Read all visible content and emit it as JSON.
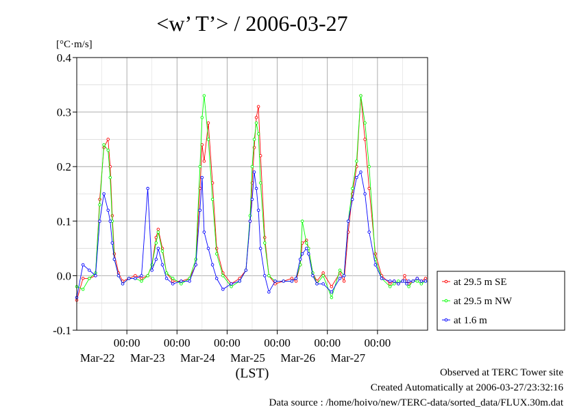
{
  "title": "<w’ T’> / 2006-03-27",
  "chart_data": {
    "type": "line",
    "title": "<w’ T’> / 2006-03-27",
    "ylabel": "[°C·m/s]",
    "xlabel": "(LST)",
    "ylim": [
      -0.1,
      0.4
    ],
    "xlim": [
      "2006-03-21 00:00",
      "2006-03-28 00:00"
    ],
    "y_ticks": [
      "-0.1",
      "0.0",
      "0.1",
      "0.2",
      "0.3",
      "0.4"
    ],
    "x_ticks": [
      {
        "time": "00:00",
        "date": "Mar-22"
      },
      {
        "time": "00:00",
        "date": "Mar-23"
      },
      {
        "time": "00:00",
        "date": "Mar-24"
      },
      {
        "time": "00:00",
        "date": "Mar-25"
      },
      {
        "time": "00:00",
        "date": "Mar-26"
      },
      {
        "time": "00:00",
        "date": "Mar-27"
      }
    ],
    "grid": true,
    "legend_position": "right",
    "series": [
      {
        "name": "at 29.5 m SE",
        "color": "#ff0000",
        "x": [
          "2006-03-21 00:00",
          "2006-03-21 03:00",
          "2006-03-21 06:00",
          "2006-03-21 09:00",
          "2006-03-21 11:00",
          "2006-03-21 13:00",
          "2006-03-21 15:00",
          "2006-03-21 16:00",
          "2006-03-21 17:00",
          "2006-03-21 18:00",
          "2006-03-21 20:00",
          "2006-03-21 22:00",
          "2006-03-22 01:00",
          "2006-03-22 04:00",
          "2006-03-22 07:00",
          "2006-03-22 10:00",
          "2006-03-22 12:00",
          "2006-03-22 14:00",
          "2006-03-22 15:00",
          "2006-03-22 17:00",
          "2006-03-22 19:00",
          "2006-03-22 22:00",
          "2006-03-23 02:00",
          "2006-03-23 06:00",
          "2006-03-23 09:00",
          "2006-03-23 11:00",
          "2006-03-23 12:00",
          "2006-03-23 13:00",
          "2006-03-23 15:00",
          "2006-03-23 17:00",
          "2006-03-23 19:00",
          "2006-03-23 22:00",
          "2006-03-24 02:00",
          "2006-03-24 06:00",
          "2006-03-24 09:00",
          "2006-03-24 11:00",
          "2006-03-24 12:00",
          "2006-03-24 13:00",
          "2006-03-24 14:00",
          "2006-03-24 15:00",
          "2006-03-24 16:00",
          "2006-03-24 18:00",
          "2006-03-24 20:00",
          "2006-03-24 23:00",
          "2006-03-25 03:00",
          "2006-03-25 07:00",
          "2006-03-25 09:00",
          "2006-03-25 11:00",
          "2006-03-25 12:00",
          "2006-03-25 14:00",
          "2006-03-25 15:00",
          "2006-03-25 17:00",
          "2006-03-25 19:00",
          "2006-03-25 22:00",
          "2006-03-26 02:00",
          "2006-03-26 06:00",
          "2006-03-26 08:00",
          "2006-03-26 10:00",
          "2006-03-26 12:00",
          "2006-03-26 14:00",
          "2006-03-26 16:00",
          "2006-03-26 18:00",
          "2006-03-26 20:00",
          "2006-03-26 23:00",
          "2006-03-27 02:00",
          "2006-03-27 06:00",
          "2006-03-27 08:00",
          "2006-03-27 10:00",
          "2006-03-27 12:00",
          "2006-03-27 13:00",
          "2006-03-27 14:00",
          "2006-03-27 15:00",
          "2006-03-27 17:00",
          "2006-03-27 19:00",
          "2006-03-27 21:00",
          "2006-03-27 23:00"
        ],
        "y": [
          -0.045,
          -0.005,
          -0.005,
          0.0,
          0.14,
          0.235,
          0.25,
          0.2,
          0.11,
          0.04,
          0.005,
          -0.01,
          -0.005,
          0.0,
          -0.005,
          0.0,
          0.02,
          0.07,
          0.085,
          0.05,
          0.005,
          -0.01,
          -0.01,
          -0.005,
          0.02,
          0.16,
          0.24,
          0.21,
          0.28,
          0.17,
          0.05,
          0.005,
          -0.015,
          -0.005,
          0.01,
          0.1,
          0.17,
          0.235,
          0.29,
          0.31,
          0.22,
          0.07,
          0.0,
          -0.015,
          -0.01,
          -0.005,
          -0.01,
          0.02,
          0.06,
          0.065,
          0.05,
          0.005,
          -0.01,
          0.005,
          -0.02,
          0.005,
          -0.01,
          0.08,
          0.15,
          0.2,
          0.33,
          0.25,
          0.16,
          0.04,
          0.0,
          -0.015,
          -0.01,
          -0.015,
          -0.01,
          0.0,
          -0.01,
          -0.015,
          -0.01,
          -0.005,
          -0.01,
          -0.005
        ]
      },
      {
        "name": "at 29.5 m NW",
        "color": "#00ff00",
        "x": [
          "2006-03-21 00:00",
          "2006-03-21 03:00",
          "2006-03-21 06:00",
          "2006-03-21 09:00",
          "2006-03-21 11:00",
          "2006-03-21 13:00",
          "2006-03-21 15:00",
          "2006-03-21 16:00",
          "2006-03-21 17:00",
          "2006-03-21 18:00",
          "2006-03-21 20:00",
          "2006-03-21 22:00",
          "2006-03-22 01:00",
          "2006-03-22 04:00",
          "2006-03-22 07:00",
          "2006-03-22 10:00",
          "2006-03-22 12:00",
          "2006-03-22 14:00",
          "2006-03-22 15:00",
          "2006-03-22 17:00",
          "2006-03-22 19:00",
          "2006-03-22 22:00",
          "2006-03-23 02:00",
          "2006-03-23 06:00",
          "2006-03-23 09:00",
          "2006-03-23 11:00",
          "2006-03-23 12:00",
          "2006-03-23 13:00",
          "2006-03-23 15:00",
          "2006-03-23 17:00",
          "2006-03-23 19:00",
          "2006-03-23 22:00",
          "2006-03-24 02:00",
          "2006-03-24 06:00",
          "2006-03-24 09:00",
          "2006-03-24 11:00",
          "2006-03-24 12:00",
          "2006-03-24 13:00",
          "2006-03-24 14:00",
          "2006-03-24 15:00",
          "2006-03-24 16:00",
          "2006-03-24 18:00",
          "2006-03-24 20:00",
          "2006-03-24 23:00",
          "2006-03-25 03:00",
          "2006-03-25 07:00",
          "2006-03-25 09:00",
          "2006-03-25 11:00",
          "2006-03-25 12:00",
          "2006-03-25 14:00",
          "2006-03-25 15:00",
          "2006-03-25 17:00",
          "2006-03-25 19:00",
          "2006-03-25 22:00",
          "2006-03-26 02:00",
          "2006-03-26 06:00",
          "2006-03-26 08:00",
          "2006-03-26 10:00",
          "2006-03-26 12:00",
          "2006-03-26 14:00",
          "2006-03-26 16:00",
          "2006-03-26 18:00",
          "2006-03-26 20:00",
          "2006-03-26 23:00",
          "2006-03-27 02:00",
          "2006-03-27 06:00",
          "2006-03-27 08:00",
          "2006-03-27 10:00",
          "2006-03-27 12:00",
          "2006-03-27 13:00",
          "2006-03-27 14:00",
          "2006-03-27 15:00",
          "2006-03-27 17:00",
          "2006-03-27 19:00",
          "2006-03-27 21:00",
          "2006-03-27 23:00"
        ],
        "y": [
          -0.02,
          -0.025,
          -0.005,
          0.005,
          0.13,
          0.24,
          0.23,
          0.18,
          0.1,
          0.03,
          0.0,
          -0.015,
          -0.005,
          -0.005,
          -0.01,
          0.0,
          0.02,
          0.06,
          0.08,
          0.045,
          0.005,
          -0.005,
          -0.015,
          -0.005,
          0.03,
          0.2,
          0.29,
          0.33,
          0.25,
          0.14,
          0.04,
          0.0,
          -0.02,
          -0.01,
          0.01,
          0.11,
          0.2,
          0.25,
          0.28,
          0.26,
          0.17,
          0.06,
          0.0,
          -0.01,
          -0.01,
          -0.01,
          -0.005,
          0.02,
          0.1,
          0.06,
          0.05,
          0.005,
          -0.015,
          0.0,
          -0.04,
          0.01,
          0.0,
          0.1,
          0.16,
          0.21,
          0.33,
          0.28,
          0.2,
          0.03,
          -0.005,
          -0.02,
          -0.015,
          -0.01,
          -0.01,
          -0.01,
          -0.015,
          -0.02,
          -0.01,
          -0.01,
          -0.015,
          -0.01
        ]
      },
      {
        "name": "at 1.6 m",
        "color": "#0000ff",
        "x": [
          "2006-03-21 00:00",
          "2006-03-21 03:00",
          "2006-03-21 06:00",
          "2006-03-21 09:00",
          "2006-03-21 11:00",
          "2006-03-21 13:00",
          "2006-03-21 15:00",
          "2006-03-21 16:00",
          "2006-03-21 17:00",
          "2006-03-21 18:00",
          "2006-03-21 20:00",
          "2006-03-21 22:00",
          "2006-03-22 01:00",
          "2006-03-22 04:00",
          "2006-03-22 07:00",
          "2006-03-22 10:00",
          "2006-03-22 12:00",
          "2006-03-22 14:00",
          "2006-03-22 15:00",
          "2006-03-22 17:00",
          "2006-03-22 19:00",
          "2006-03-22 22:00",
          "2006-03-23 02:00",
          "2006-03-23 06:00",
          "2006-03-23 09:00",
          "2006-03-23 11:00",
          "2006-03-23 12:00",
          "2006-03-23 13:00",
          "2006-03-23 15:00",
          "2006-03-23 17:00",
          "2006-03-23 19:00",
          "2006-03-23 22:00",
          "2006-03-24 02:00",
          "2006-03-24 06:00",
          "2006-03-24 09:00",
          "2006-03-24 11:00",
          "2006-03-24 12:00",
          "2006-03-24 13:00",
          "2006-03-24 14:00",
          "2006-03-24 15:00",
          "2006-03-24 16:00",
          "2006-03-24 18:00",
          "2006-03-24 20:00",
          "2006-03-24 23:00",
          "2006-03-25 03:00",
          "2006-03-25 07:00",
          "2006-03-25 09:00",
          "2006-03-25 11:00",
          "2006-03-25 12:00",
          "2006-03-25 14:00",
          "2006-03-25 15:00",
          "2006-03-25 17:00",
          "2006-03-25 19:00",
          "2006-03-25 22:00",
          "2006-03-26 02:00",
          "2006-03-26 06:00",
          "2006-03-26 08:00",
          "2006-03-26 10:00",
          "2006-03-26 12:00",
          "2006-03-26 14:00",
          "2006-03-26 16:00",
          "2006-03-26 18:00",
          "2006-03-26 20:00",
          "2006-03-26 23:00",
          "2006-03-27 02:00",
          "2006-03-27 06:00",
          "2006-03-27 08:00",
          "2006-03-27 10:00",
          "2006-03-27 12:00",
          "2006-03-27 13:00",
          "2006-03-27 14:00",
          "2006-03-27 15:00",
          "2006-03-27 17:00",
          "2006-03-27 19:00",
          "2006-03-27 21:00",
          "2006-03-27 23:00"
        ],
        "y": [
          -0.04,
          0.02,
          0.01,
          0.0,
          0.1,
          0.15,
          0.12,
          0.1,
          0.06,
          0.03,
          0.0,
          -0.015,
          -0.005,
          -0.005,
          0.0,
          0.16,
          0.01,
          0.03,
          0.05,
          0.02,
          -0.005,
          -0.015,
          -0.01,
          -0.01,
          0.02,
          0.12,
          0.18,
          0.08,
          0.05,
          0.02,
          -0.005,
          -0.025,
          -0.015,
          -0.01,
          0.01,
          0.1,
          0.14,
          0.19,
          0.16,
          0.12,
          0.05,
          0.0,
          -0.03,
          -0.01,
          -0.01,
          -0.01,
          -0.005,
          0.03,
          0.04,
          0.05,
          0.04,
          0.0,
          -0.015,
          -0.015,
          -0.03,
          -0.005,
          0.0,
          0.1,
          0.14,
          0.18,
          0.19,
          0.15,
          0.08,
          0.02,
          -0.005,
          -0.01,
          -0.01,
          -0.015,
          -0.01,
          -0.01,
          -0.015,
          -0.01,
          -0.01,
          -0.005,
          -0.01,
          -0.01
        ]
      }
    ]
  },
  "footer": {
    "line1": "Observed at TERC Tower site",
    "line2": "Created Automatically at 2006-03-27/23:32:16",
    "line3": "Data source : /home/hoivo/new/TERC-data/sorted_data/FLUX.30m.dat"
  }
}
